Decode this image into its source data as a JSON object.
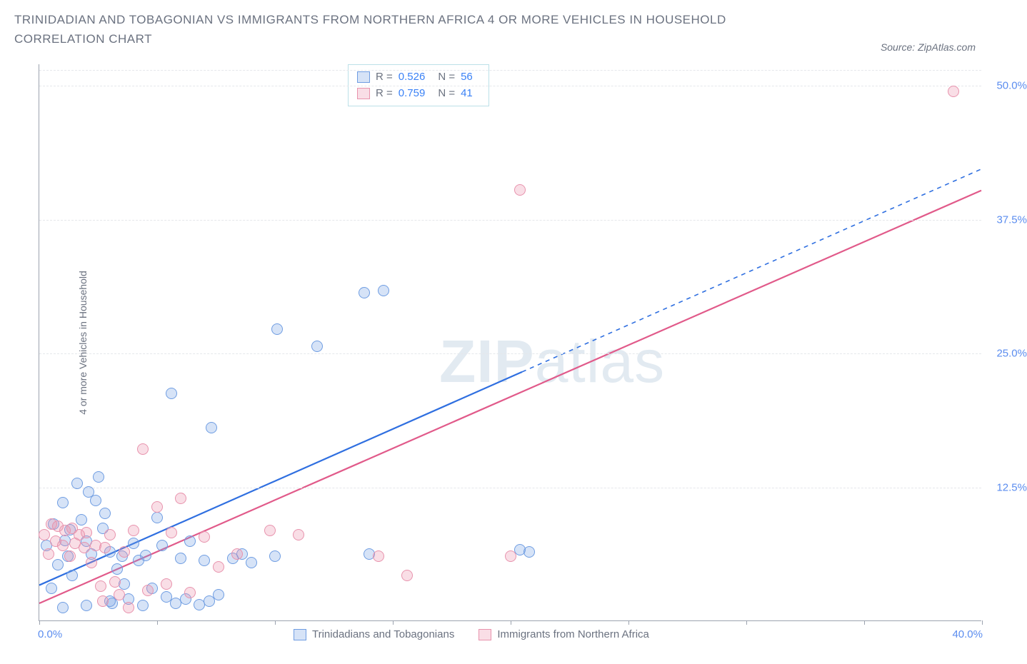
{
  "title": "TRINIDADIAN AND TOBAGONIAN VS IMMIGRANTS FROM NORTHERN AFRICA 4 OR MORE VEHICLES IN HOUSEHOLD CORRELATION CHART",
  "source": "Source: ZipAtlas.com",
  "ylabel": "4 or more Vehicles in Household",
  "watermark_a": "ZIP",
  "watermark_b": "atlas",
  "chart": {
    "type": "scatter",
    "xlim": [
      0,
      40
    ],
    "ylim": [
      0,
      52
    ],
    "xticks": [
      0,
      5,
      10,
      15,
      20,
      25,
      30,
      35,
      40
    ],
    "yticks": [
      12.5,
      25.0,
      37.5,
      50.0
    ],
    "ytick_labels": [
      "12.5%",
      "25.0%",
      "37.5%",
      "50.0%"
    ],
    "x_left_label": "0.0%",
    "x_right_label": "40.0%",
    "background_color": "#ffffff",
    "grid_color": "#e5e7eb",
    "axis_color": "#9ca3af",
    "series": [
      {
        "name": "Trinidadians and Tobagonians",
        "color_fill": "rgba(120,162,228,0.30)",
        "color_stroke": "#6f9de2",
        "line_color": "#2f6fe0",
        "R": "0.526",
        "N": "56",
        "trend": {
          "x1": 0,
          "y1": 3.3,
          "x2": 40,
          "y2": 42.2,
          "solid_until_x": 20.5
        },
        "points": [
          [
            0.3,
            7.0
          ],
          [
            0.5,
            3.0
          ],
          [
            0.6,
            9.0
          ],
          [
            0.8,
            5.2
          ],
          [
            1.0,
            11.0
          ],
          [
            1.1,
            7.5
          ],
          [
            1.2,
            6.0
          ],
          [
            1.3,
            8.5
          ],
          [
            1.4,
            4.2
          ],
          [
            1.6,
            12.8
          ],
          [
            1.8,
            9.4
          ],
          [
            2.0,
            7.4
          ],
          [
            2.1,
            12.0
          ],
          [
            2.2,
            6.2
          ],
          [
            2.4,
            11.2
          ],
          [
            2.5,
            13.4
          ],
          [
            2.7,
            8.6
          ],
          [
            2.8,
            10.0
          ],
          [
            3.0,
            6.4
          ],
          [
            3.1,
            1.6
          ],
          [
            3.3,
            4.8
          ],
          [
            3.5,
            6.0
          ],
          [
            3.6,
            3.4
          ],
          [
            3.8,
            2.0
          ],
          [
            4.0,
            7.2
          ],
          [
            4.2,
            5.6
          ],
          [
            4.4,
            1.4
          ],
          [
            4.5,
            6.1
          ],
          [
            4.8,
            3.0
          ],
          [
            5.0,
            9.6
          ],
          [
            5.2,
            7.0
          ],
          [
            5.4,
            2.2
          ],
          [
            5.6,
            21.2
          ],
          [
            5.8,
            1.6
          ],
          [
            6.0,
            5.8
          ],
          [
            6.2,
            2.0
          ],
          [
            6.4,
            7.4
          ],
          [
            6.8,
            1.5
          ],
          [
            7.0,
            5.6
          ],
          [
            7.2,
            1.8
          ],
          [
            7.3,
            18.0
          ],
          [
            7.6,
            2.4
          ],
          [
            8.2,
            5.8
          ],
          [
            8.6,
            6.2
          ],
          [
            9.0,
            5.4
          ],
          [
            10.0,
            6.0
          ],
          [
            10.1,
            27.2
          ],
          [
            11.8,
            25.6
          ],
          [
            13.8,
            30.6
          ],
          [
            14.6,
            30.8
          ],
          [
            14.0,
            6.2
          ],
          [
            20.4,
            6.6
          ],
          [
            20.8,
            6.4
          ],
          [
            1.0,
            1.2
          ],
          [
            2.0,
            1.4
          ],
          [
            3.0,
            1.8
          ]
        ]
      },
      {
        "name": "Immigrants from Northern Africa",
        "color_fill": "rgba(235,145,172,0.30)",
        "color_stroke": "#e893ad",
        "line_color": "#e15a8a",
        "R": "0.759",
        "N": "41",
        "trend": {
          "x1": 0,
          "y1": 1.6,
          "x2": 40,
          "y2": 40.2,
          "solid_until_x": 40
        },
        "points": [
          [
            0.2,
            8.0
          ],
          [
            0.4,
            6.2
          ],
          [
            0.5,
            9.0
          ],
          [
            0.7,
            7.4
          ],
          [
            0.8,
            8.8
          ],
          [
            1.0,
            7.0
          ],
          [
            1.1,
            8.4
          ],
          [
            1.3,
            6.0
          ],
          [
            1.4,
            8.6
          ],
          [
            1.5,
            7.2
          ],
          [
            1.7,
            8.0
          ],
          [
            1.9,
            6.8
          ],
          [
            2.0,
            8.2
          ],
          [
            2.2,
            5.4
          ],
          [
            2.4,
            7.0
          ],
          [
            2.6,
            3.2
          ],
          [
            2.7,
            1.8
          ],
          [
            2.8,
            6.8
          ],
          [
            3.0,
            8.0
          ],
          [
            3.2,
            3.6
          ],
          [
            3.4,
            2.4
          ],
          [
            3.6,
            6.4
          ],
          [
            3.8,
            1.2
          ],
          [
            4.0,
            8.4
          ],
          [
            4.4,
            16.0
          ],
          [
            4.6,
            2.8
          ],
          [
            5.0,
            10.6
          ],
          [
            5.4,
            3.4
          ],
          [
            5.6,
            8.2
          ],
          [
            6.0,
            11.4
          ],
          [
            6.4,
            2.6
          ],
          [
            7.0,
            7.8
          ],
          [
            7.6,
            5.0
          ],
          [
            8.4,
            6.2
          ],
          [
            9.8,
            8.4
          ],
          [
            11.0,
            8.0
          ],
          [
            14.4,
            6.0
          ],
          [
            15.6,
            4.2
          ],
          [
            20.0,
            6.0
          ],
          [
            20.4,
            40.2
          ],
          [
            38.8,
            49.4
          ]
        ]
      }
    ]
  }
}
